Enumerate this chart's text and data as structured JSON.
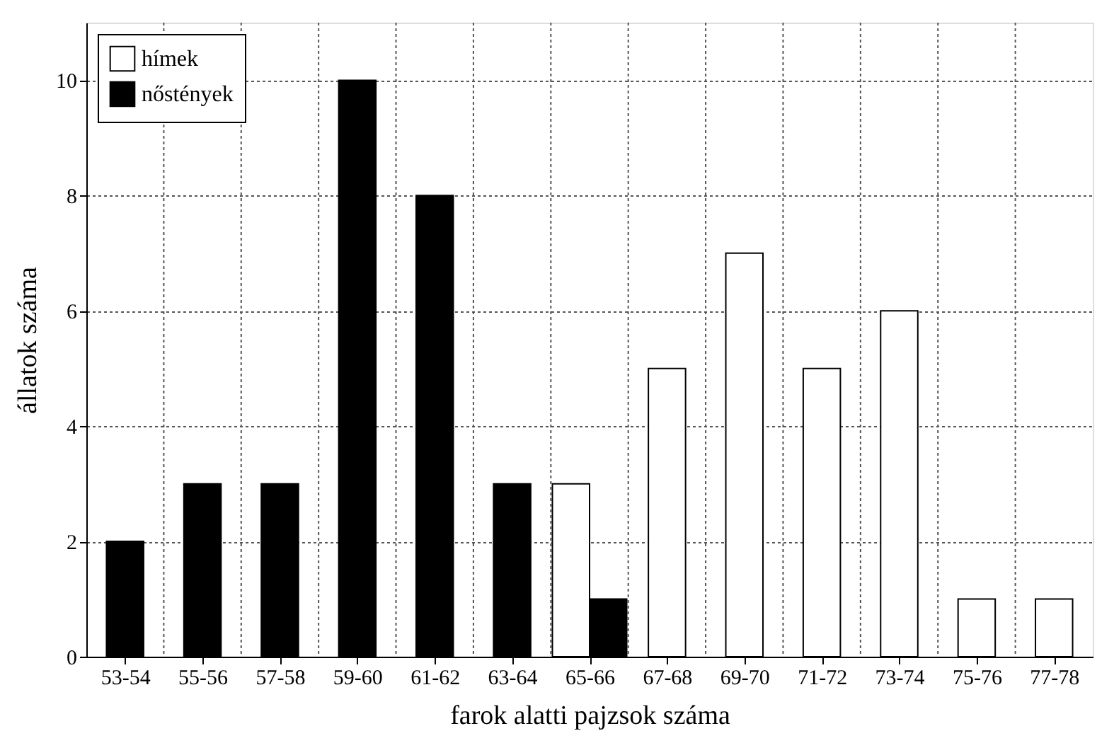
{
  "chart_data": {
    "type": "bar",
    "xlabel": "farok alatti pajzsok száma",
    "ylabel": "állatok száma",
    "categories": [
      "53-54",
      "55-56",
      "57-58",
      "59-60",
      "61-62",
      "63-64",
      "65-66",
      "67-68",
      "69-70",
      "71-72",
      "73-74",
      "75-76",
      "77-78"
    ],
    "series": [
      {
        "name": "hímek",
        "color": "#ffffff",
        "values": [
          null,
          null,
          null,
          null,
          null,
          null,
          3,
          5,
          7,
          5,
          6,
          1,
          1
        ]
      },
      {
        "name": "nőstények",
        "color": "#000000",
        "values": [
          2,
          3,
          3,
          10,
          8,
          3,
          1,
          null,
          null,
          null,
          null,
          null,
          null
        ]
      }
    ],
    "ylim": [
      0,
      11
    ],
    "yticks": [
      0,
      2,
      4,
      6,
      8,
      10
    ],
    "grid": true,
    "legend": "top left"
  }
}
